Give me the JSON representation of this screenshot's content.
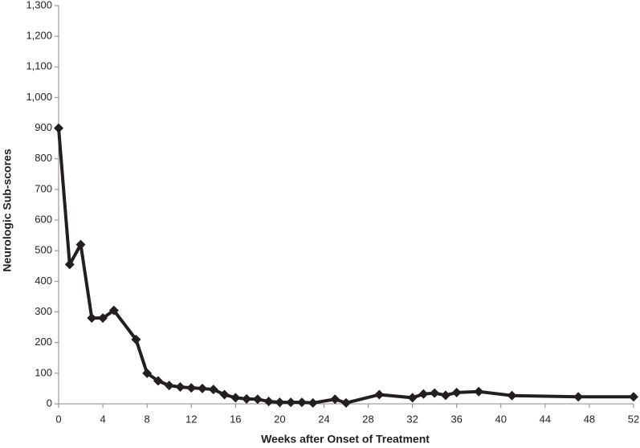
{
  "chart_data": {
    "type": "line",
    "x_label": "Weeks after Onset of Treatment",
    "y_label": "Neurologic Sub-scores",
    "series": [
      {
        "color": "#231f20",
        "x": [
          0,
          1,
          2,
          3,
          4,
          5,
          7,
          8,
          9,
          10,
          11,
          12,
          13,
          14,
          15,
          16,
          17,
          18,
          19,
          20,
          21,
          22,
          23,
          25,
          26,
          29,
          32,
          33,
          34,
          35,
          36,
          38,
          41,
          47,
          52
        ],
        "values": [
          900,
          455,
          520,
          280,
          280,
          305,
          210,
          100,
          75,
          60,
          55,
          52,
          50,
          47,
          30,
          20,
          16,
          15,
          8,
          5,
          5,
          5,
          3,
          15,
          3,
          30,
          20,
          32,
          35,
          28,
          37,
          40,
          27,
          23,
          23
        ]
      }
    ],
    "xlim": [
      0,
      52
    ],
    "xticks": [
      0,
      4,
      8,
      12,
      16,
      20,
      24,
      28,
      32,
      36,
      40,
      44,
      48,
      52
    ],
    "ylim": [
      0,
      1300
    ],
    "yticks": [
      0,
      100,
      200,
      300,
      400,
      500,
      600,
      700,
      800,
      900,
      {
        "value": 1000,
        "label": "1,000"
      },
      {
        "value": 1100,
        "label": "1,100"
      },
      {
        "value": 1200,
        "label": "1,200"
      },
      {
        "value": 1300,
        "label": "1,300"
      }
    ],
    "grid": false
  }
}
